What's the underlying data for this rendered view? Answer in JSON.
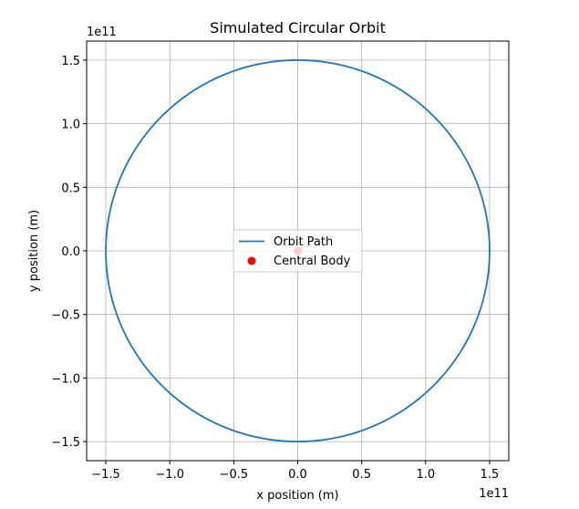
{
  "chart_data": {
    "type": "line",
    "title": "Simulated Circular Orbit",
    "xlabel": "x position (m)",
    "ylabel": "y position (m)",
    "x_offset_label": "1e11",
    "y_offset_label": "1e11",
    "xlim": [
      -165000000000.0,
      165000000000.0
    ],
    "ylim": [
      -165000000000.0,
      165000000000.0
    ],
    "xticks": [
      -150000000000.0,
      -100000000000.0,
      -50000000000.0,
      0,
      50000000000.0,
      100000000000.0,
      150000000000.0
    ],
    "yticks": [
      -150000000000.0,
      -100000000000.0,
      -50000000000.0,
      0,
      50000000000.0,
      100000000000.0,
      150000000000.0
    ],
    "xtick_labels": [
      "−1.5",
      "−1.0",
      "−0.5",
      "0.0",
      "0.5",
      "1.0",
      "1.5"
    ],
    "ytick_labels": [
      "−1.5",
      "−1.0",
      "−0.5",
      "0.0",
      "0.5",
      "1.0",
      "1.5"
    ],
    "grid": true,
    "legend_position": "center",
    "series": [
      {
        "name": "Orbit Path",
        "kind": "line",
        "shape": "circle",
        "radius": 150000000000.0,
        "center": [
          0,
          0
        ],
        "color": "#1f77b4"
      },
      {
        "name": "Central Body",
        "kind": "scatter",
        "x": [
          0
        ],
        "y": [
          0
        ],
        "color": "#ff0000"
      }
    ]
  }
}
